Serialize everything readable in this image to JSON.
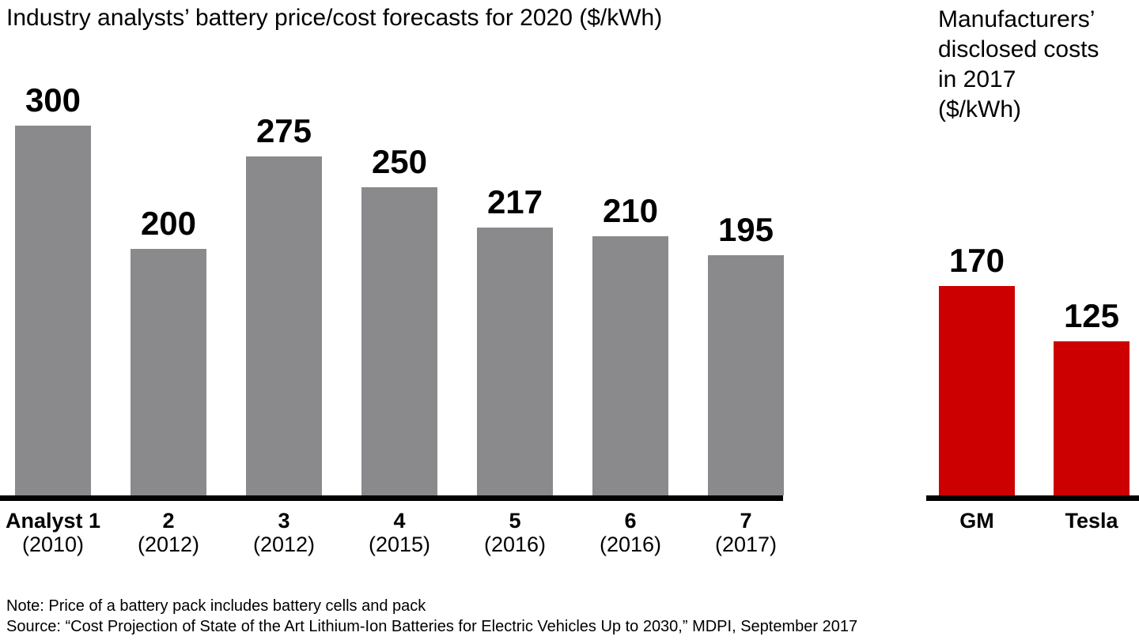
{
  "left_chart": {
    "title": "Industry analysts’ battery price/cost forecasts for 2020 ($/kWh)"
  },
  "right_chart": {
    "title_lines": [
      "Manufacturers’",
      "disclosed costs",
      "in 2017 ($/kWh)"
    ]
  },
  "footer": {
    "note": "Note: Price of a battery pack includes battery cells and pack",
    "source": "Source: “Cost Projection of State of the Art Lithium-Ion Batteries for Electric Vehicles Up to 2030,” MDPI, September 2017"
  },
  "colors": {
    "analyst_bar": "#8a8a8d",
    "manufacturer_bar": "#cc0000",
    "axis": "#000000",
    "text": "#000000"
  },
  "chart_data": [
    {
      "type": "bar",
      "title": "Industry analysts’ battery price/cost forecasts for 2020 ($/kWh)",
      "unit": "$/kWh",
      "categories": [
        "Analyst 1",
        "2",
        "3",
        "4",
        "5",
        "6",
        "7"
      ],
      "category_years": [
        "(2010)",
        "(2012)",
        "(2012)",
        "(2015)",
        "(2016)",
        "(2016)",
        "(2017)"
      ],
      "values": [
        300,
        200,
        275,
        250,
        217,
        210,
        195
      ],
      "bar_color": "#8a8a8d",
      "data_labels": true,
      "ylim": [
        0,
        320
      ],
      "grid": false,
      "legend": false
    },
    {
      "type": "bar",
      "title": "Manufacturers’ disclosed costs in 2017 ($/kWh)",
      "unit": "$/kWh",
      "categories": [
        "GM",
        "Tesla"
      ],
      "values": [
        170,
        125
      ],
      "bar_color": "#cc0000",
      "data_labels": true,
      "ylim": [
        0,
        320
      ],
      "grid": false,
      "legend": false
    }
  ]
}
